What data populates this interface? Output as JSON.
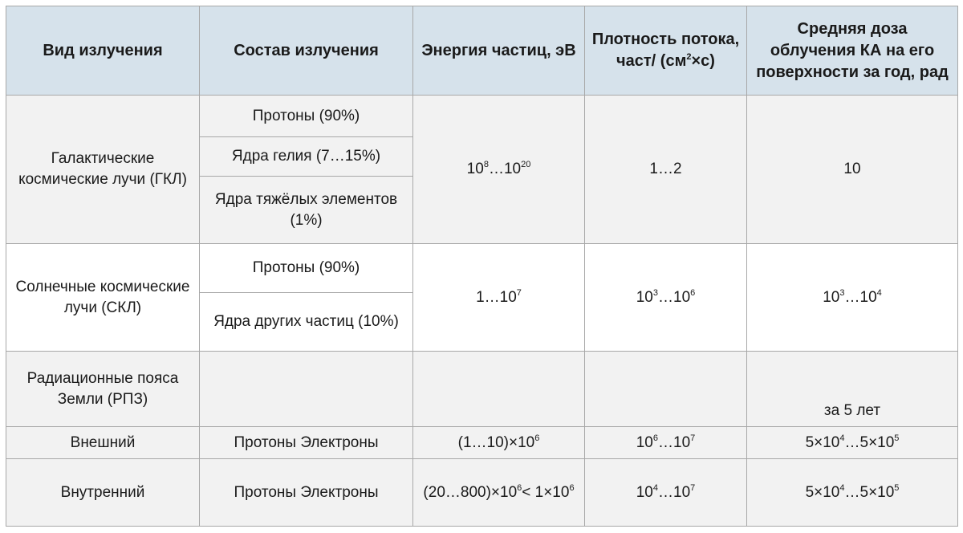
{
  "header": {
    "col1": "Вид излучения",
    "col2": "Состав излучения",
    "col3": "Энергия частиц, эВ",
    "col4_a": "Плотность потока, част/ (см",
    "col4_sup": "2",
    "col4_b": "×с)",
    "col5": "Средняя доза облучения КА на его поверхности за год, рад"
  },
  "gkl": {
    "name": "Галактические космические лучи (ГКЛ)",
    "comp1": "Протоны (90%)",
    "comp2": "Ядра гелия (7…15%)",
    "comp3": "Ядра тяжёлых элементов (1%)",
    "energy_base1": "10",
    "energy_exp1": "8",
    "energy_mid": "…10",
    "energy_exp2": "20",
    "density": "1…2",
    "dose": "10"
  },
  "skl": {
    "name": "Солнечные космические лучи (СКЛ)",
    "comp1": "Протоны (90%)",
    "comp2": "Ядра других частиц (10%)",
    "energy_base": "1…10",
    "energy_exp": "7",
    "density_base1": "10",
    "density_exp1": "3",
    "density_mid": "…10",
    "density_exp2": "6",
    "dose_base1": "10",
    "dose_exp1": "3",
    "dose_mid": "…10",
    "dose_exp2": "4"
  },
  "rpz": {
    "name": "Радиационные пояса Земли (РПЗ)",
    "dose_note": "за 5 лет"
  },
  "outer": {
    "name": "Внешний",
    "comp": "Протоны Электроны",
    "energy_a": "(1…10)×10",
    "energy_exp": "6",
    "density_base1": "10",
    "density_exp1": "6",
    "density_mid": "…10",
    "density_exp2": "7",
    "dose_a": "5×10",
    "dose_exp1": "4",
    "dose_mid": "…5×10",
    "dose_exp2": "5"
  },
  "inner": {
    "name": "Внутренний",
    "comp": "Протоны Электроны",
    "energy_a": "(20…800)×10",
    "energy_exp1": "6",
    "energy_mid": "< 1×10",
    "energy_exp2": "6",
    "density_base1": "10",
    "density_exp1": "4",
    "density_mid": "…10",
    "density_exp2": "7",
    "dose_a": "5×10",
    "dose_exp1": "4",
    "dose_mid": "…5×10",
    "dose_exp2": "5"
  }
}
